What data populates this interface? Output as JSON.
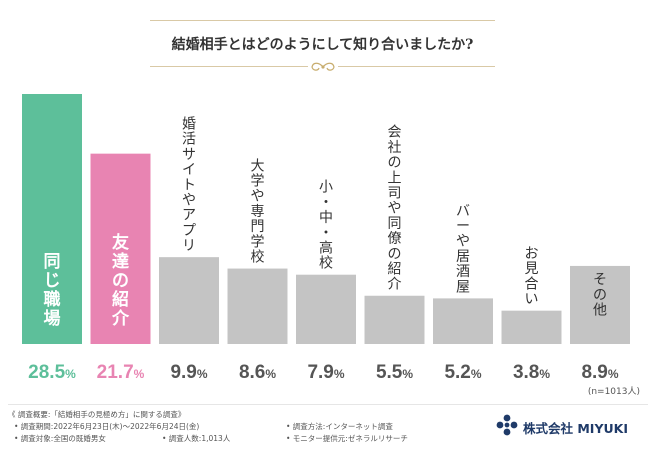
{
  "title": "結婚相手とはどのようにして知り合いましたか?",
  "chart_data": {
    "type": "bar",
    "categories": [
      "同じ職場",
      "友達の紹介",
      "婚活サイトやアプリ",
      "大学や専門学校",
      "小・中・高校",
      "会社の上司や同僚の紹介",
      "バーや居酒屋",
      "お見合い",
      "その他"
    ],
    "values": [
      28.5,
      21.7,
      9.9,
      8.6,
      7.9,
      5.5,
      5.2,
      3.8,
      8.9
    ],
    "value_labels": [
      "28.5%",
      "21.7%",
      "9.9%",
      "8.6%",
      "7.9%",
      "5.5%",
      "5.2%",
      "3.8%",
      "8.9%"
    ],
    "sample_note": "(n=1013人)",
    "ylim": [
      0,
      28.5
    ],
    "grid": false,
    "colors": {
      "highlight_1": "#5dbf9a",
      "highlight_2": "#e884b2",
      "other": "#c4c4c4",
      "label_default": "#555555"
    }
  },
  "footer": {
    "summary": "《 調査概要:「結婚相手の見極め方」に関する調査》",
    "period": "• 調査期間:2022年6月23日(木)〜2022年6月24日(金)",
    "method": "• 調査方法:インターネット調査",
    "target": "• 調査対象:全国の既婚男女",
    "count": "• 調査人数:1,013人",
    "provider": "• モニター提供元:ゼネラルリサーチ"
  },
  "brand": {
    "name": "株式会社 MIYUKI",
    "color": "#1f3a68"
  }
}
